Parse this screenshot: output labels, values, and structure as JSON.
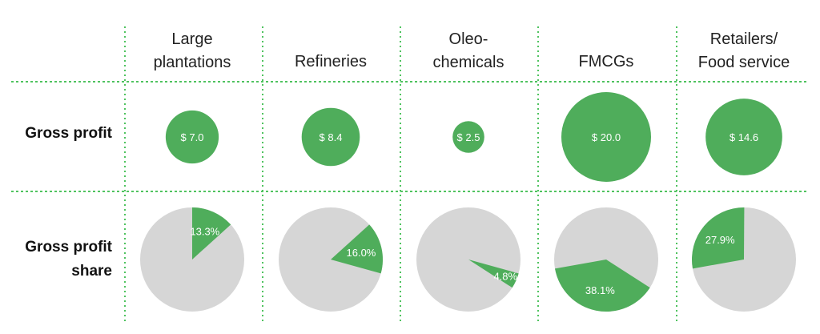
{
  "chart_data": {
    "type": "bubble-and-pie-table",
    "columns": [
      {
        "label_lines": [
          "Large",
          "plantations"
        ]
      },
      {
        "label_lines": [
          "Refineries"
        ]
      },
      {
        "label_lines": [
          "Oleo-",
          "chemicals"
        ]
      },
      {
        "label_lines": [
          "FMCGs"
        ]
      },
      {
        "label_lines": [
          "Retailers/",
          "Food service"
        ]
      }
    ],
    "rows": {
      "gross_profit": {
        "label_lines": [
          "Gross profit"
        ]
      },
      "gross_profit_share": {
        "label_lines": [
          "Gross profit",
          "share"
        ]
      }
    },
    "gross_profit": {
      "values": [
        7.0,
        8.4,
        2.5,
        20.0,
        14.6
      ],
      "labels": [
        "$ 7.0",
        "$ 8.4",
        "$ 2.5",
        "$ 20.0",
        "$ 14.6"
      ]
    },
    "gross_profit_share": {
      "values": [
        13.3,
        16.0,
        4.8,
        38.1,
        27.9
      ],
      "labels": [
        "13.3%",
        "16.0%",
        "4.8%",
        "38.1%",
        "27.9%"
      ]
    },
    "colors": {
      "accent": "#4fad5b",
      "remainder": "#d6d6d6",
      "grid": "#4fc35f"
    }
  }
}
